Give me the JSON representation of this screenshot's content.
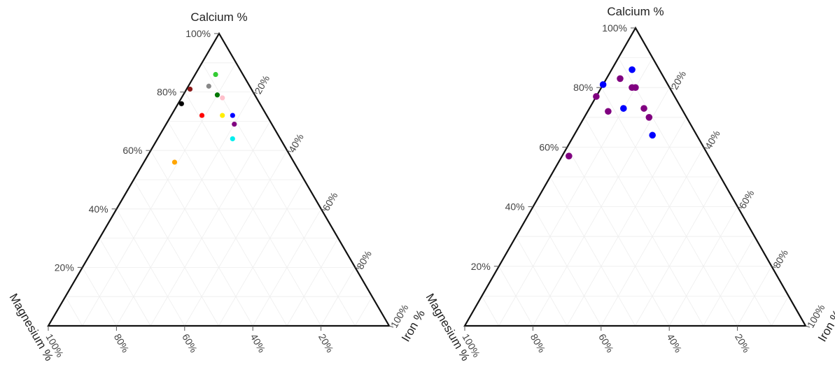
{
  "charts": [
    {
      "type": "ternary-scatter",
      "axes": {
        "top": "Calcium %",
        "left": "Magnesium %",
        "right": "Iron %"
      },
      "tick_labels": [
        "20%",
        "40%",
        "60%",
        "80%",
        "100%"
      ],
      "grid": true,
      "points": [
        {
          "ca": 86,
          "mg": 8,
          "fe": 6,
          "color": "#33cc33"
        },
        {
          "ca": 82,
          "mg": 12,
          "fe": 6,
          "color": "#888888"
        },
        {
          "ca": 81,
          "mg": 18,
          "fe": 1,
          "color": "#8b1a1a"
        },
        {
          "ca": 79,
          "mg": 11,
          "fe": 10,
          "color": "#007700"
        },
        {
          "ca": 78,
          "mg": 10,
          "fe": 12,
          "color": "#ffc0cb"
        },
        {
          "ca": 76,
          "mg": 23,
          "fe": 1,
          "color": "#000000"
        },
        {
          "ca": 72,
          "mg": 19,
          "fe": 9,
          "color": "#ff0000"
        },
        {
          "ca": 72,
          "mg": 13,
          "fe": 15,
          "color": "#ffee00"
        },
        {
          "ca": 72,
          "mg": 10,
          "fe": 18,
          "color": "#0000ff"
        },
        {
          "ca": 69,
          "mg": 11,
          "fe": 20,
          "color": "#800080"
        },
        {
          "ca": 64,
          "mg": 14,
          "fe": 22,
          "color": "#00eeee"
        },
        {
          "ca": 56,
          "mg": 35,
          "fe": 9,
          "color": "#ffa500"
        }
      ]
    },
    {
      "type": "ternary-scatter",
      "axes": {
        "top": "Calcium %",
        "left": "Magnesium %",
        "right": "Iron %"
      },
      "tick_labels": [
        "20%",
        "40%",
        "60%",
        "80%",
        "100%"
      ],
      "grid": true,
      "points": [
        {
          "ca": 86,
          "mg": 8,
          "fe": 6,
          "color": "#0000ff"
        },
        {
          "ca": 83,
          "mg": 13,
          "fe": 4,
          "color": "#800080"
        },
        {
          "ca": 80,
          "mg": 11,
          "fe": 9,
          "color": "#800080"
        },
        {
          "ca": 80,
          "mg": 10,
          "fe": 10,
          "color": "#800080"
        },
        {
          "ca": 81,
          "mg": 19,
          "fe": 0,
          "color": "#0000ff"
        },
        {
          "ca": 77,
          "mg": 23,
          "fe": 0,
          "color": "#800080"
        },
        {
          "ca": 73,
          "mg": 17,
          "fe": 10,
          "color": "#0000ff"
        },
        {
          "ca": 73,
          "mg": 11,
          "fe": 16,
          "color": "#800080"
        },
        {
          "ca": 72,
          "mg": 22,
          "fe": 6,
          "color": "#800080"
        },
        {
          "ca": 70,
          "mg": 11,
          "fe": 19,
          "color": "#800080"
        },
        {
          "ca": 64,
          "mg": 13,
          "fe": 23,
          "color": "#0000ff"
        },
        {
          "ca": 57,
          "mg": 41,
          "fe": 2,
          "color": "#800080"
        }
      ]
    }
  ]
}
